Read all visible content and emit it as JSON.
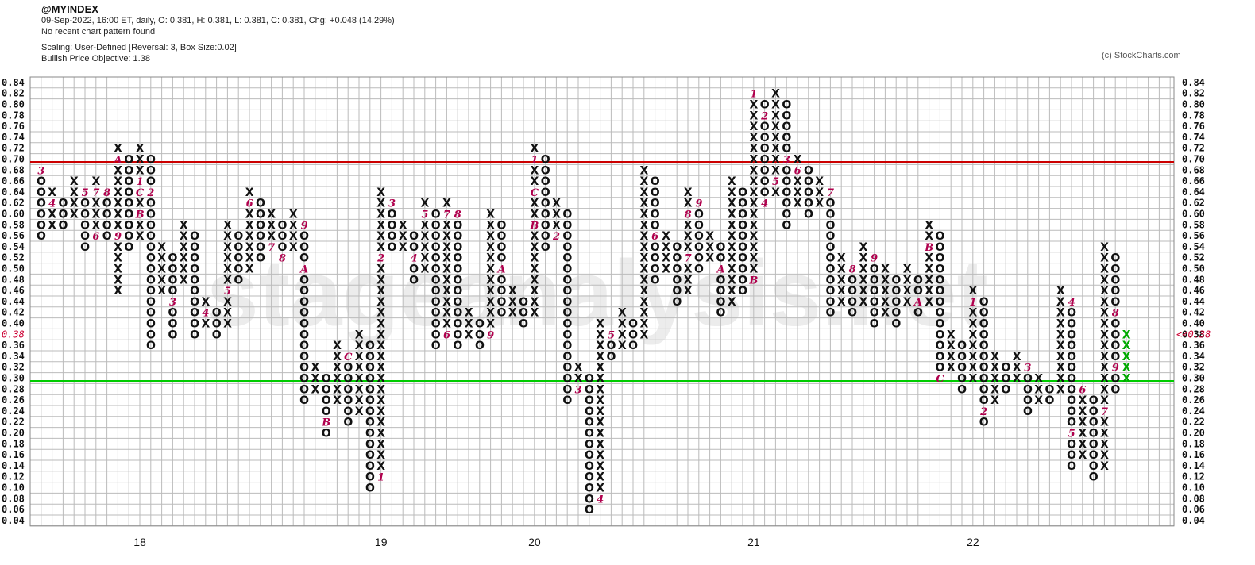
{
  "header": {
    "symbol": "@MYINDEX",
    "ohlc_line": "09-Sep-2022, 16:00 ET, daily, O: 0.381, H: 0.381, L: 0.381, C: 0.381, Chg: +0.048 (14.29%)",
    "pattern_line": "No recent chart pattern found",
    "scaling_line": "Scaling: User-Defined [Reversal: 3, Box Size:0.02]",
    "objective_line": "Bullish Price Objective: 1.38"
  },
  "credit": "(c) StockCharts.com",
  "watermark": "stageanalysis.net",
  "colors": {
    "x_mark": "#111111",
    "o_mark": "#111111",
    "month_label": "#b0004d",
    "resistance": "#cc0000",
    "support": "#00cc00",
    "last_x": "#00aa00",
    "grid": "#bbbbbb",
    "current_price": "#cc0033"
  },
  "chart_data": {
    "type": "point-and-figure",
    "box_size": 0.02,
    "reversal": 3,
    "ylim": [
      0.04,
      0.84
    ],
    "y_ticks": [
      "0.84",
      "0.82",
      "0.80",
      "0.78",
      "0.76",
      "0.74",
      "0.72",
      "0.70",
      "0.68",
      "0.66",
      "0.64",
      "0.62",
      "0.60",
      "0.58",
      "0.56",
      "0.54",
      "0.52",
      "0.50",
      "0.48",
      "0.46",
      "0.44",
      "0.42",
      "0.40",
      "0.38",
      "0.36",
      "0.34",
      "0.32",
      "0.30",
      "0.28",
      "0.26",
      "0.24",
      "0.22",
      "0.20",
      "0.18",
      "0.16",
      "0.14",
      "0.12",
      "0.10",
      "0.08",
      "0.06",
      "0.04"
    ],
    "current_price_label": "<<0.38",
    "current_price": 0.38,
    "year_labels": [
      {
        "label": "18",
        "column": 9
      },
      {
        "label": "19",
        "column": 31
      },
      {
        "label": "20",
        "column": 45
      },
      {
        "label": "21",
        "column": 65
      },
      {
        "label": "22",
        "column": 85
      }
    ],
    "horizontal_lines": [
      {
        "name": "resistance",
        "value": 0.695,
        "color": "#cc0000"
      },
      {
        "name": "support",
        "value": 0.295,
        "color": "#00cc00"
      }
    ],
    "columns": [
      {
        "type": "O",
        "high": 0.68,
        "low": 0.56,
        "months": {
          "0.68": "3"
        }
      },
      {
        "type": "X",
        "high": 0.64,
        "low": 0.58,
        "months": {
          "0.62": "4"
        }
      },
      {
        "type": "O",
        "high": 0.62,
        "low": 0.58
      },
      {
        "type": "X",
        "high": 0.66,
        "low": 0.6
      },
      {
        "type": "O",
        "high": 0.64,
        "low": 0.54,
        "months": {
          "0.64": "5"
        }
      },
      {
        "type": "X",
        "high": 0.66,
        "low": 0.56,
        "months": {
          "0.64": "7",
          "0.56": "6"
        }
      },
      {
        "type": "O",
        "high": 0.64,
        "low": 0.56,
        "months": {
          "0.64": "8"
        }
      },
      {
        "type": "X",
        "high": 0.72,
        "low": 0.46,
        "months": {
          "0.70": "A",
          "0.56": "9"
        }
      },
      {
        "type": "O",
        "high": 0.7,
        "low": 0.54
      },
      {
        "type": "X",
        "high": 0.72,
        "low": 0.56,
        "months": {
          "0.66": "1",
          "0.64": "C",
          "0.60": "B"
        }
      },
      {
        "type": "O",
        "high": 0.7,
        "low": 0.36,
        "months": {
          "0.64": "2"
        }
      },
      {
        "type": "X",
        "high": 0.54,
        "low": 0.46
      },
      {
        "type": "O",
        "high": 0.52,
        "low": 0.38,
        "months": {
          "0.44": "3"
        }
      },
      {
        "type": "X",
        "high": 0.58,
        "low": 0.48
      },
      {
        "type": "O",
        "high": 0.56,
        "low": 0.38
      },
      {
        "type": "X",
        "high": 0.44,
        "low": 0.4,
        "months": {
          "0.42": "4"
        }
      },
      {
        "type": "O",
        "high": 0.42,
        "low": 0.38
      },
      {
        "type": "X",
        "high": 0.58,
        "low": 0.4,
        "months": {
          "0.46": "5"
        }
      },
      {
        "type": "O",
        "high": 0.56,
        "low": 0.48
      },
      {
        "type": "X",
        "high": 0.64,
        "low": 0.5,
        "months": {
          "0.62": "6"
        }
      },
      {
        "type": "O",
        "high": 0.62,
        "low": 0.52
      },
      {
        "type": "X",
        "high": 0.6,
        "low": 0.54,
        "months": {
          "0.54": "7"
        }
      },
      {
        "type": "O",
        "high": 0.58,
        "low": 0.52,
        "months": {
          "0.52": "8"
        }
      },
      {
        "type": "X",
        "high": 0.6,
        "low": 0.54
      },
      {
        "type": "O",
        "high": 0.58,
        "low": 0.26,
        "months": {
          "0.58": "9",
          "0.50": "A"
        }
      },
      {
        "type": "X",
        "high": 0.32,
        "low": 0.28
      },
      {
        "type": "O",
        "high": 0.3,
        "low": 0.2,
        "months": {
          "0.22": "B"
        }
      },
      {
        "type": "X",
        "high": 0.36,
        "low": 0.26
      },
      {
        "type": "O",
        "high": 0.34,
        "low": 0.22,
        "months": {
          "0.34": "C"
        }
      },
      {
        "type": "X",
        "high": 0.38,
        "low": 0.24
      },
      {
        "type": "O",
        "high": 0.36,
        "low": 0.1
      },
      {
        "type": "X",
        "high": 0.64,
        "low": 0.12,
        "months": {
          "0.52": "2",
          "0.12": "1"
        }
      },
      {
        "type": "O",
        "high": 0.62,
        "low": 0.54,
        "months": {
          "0.62": "3"
        }
      },
      {
        "type": "X",
        "high": 0.58,
        "low": 0.54
      },
      {
        "type": "O",
        "high": 0.56,
        "low": 0.48,
        "months": {
          "0.52": "4"
        }
      },
      {
        "type": "X",
        "high": 0.62,
        "low": 0.5,
        "months": {
          "0.60": "5"
        }
      },
      {
        "type": "O",
        "high": 0.6,
        "low": 0.36
      },
      {
        "type": "X",
        "high": 0.62,
        "low": 0.38,
        "months": {
          "0.60": "7",
          "0.38": "6"
        }
      },
      {
        "type": "O",
        "high": 0.6,
        "low": 0.36,
        "months": {
          "0.60": "8"
        }
      },
      {
        "type": "X",
        "high": 0.42,
        "low": 0.38
      },
      {
        "type": "O",
        "high": 0.4,
        "low": 0.36
      },
      {
        "type": "X",
        "high": 0.6,
        "low": 0.38,
        "months": {
          "0.38": "9"
        }
      },
      {
        "type": "O",
        "high": 0.58,
        "low": 0.42,
        "months": {
          "0.50": "A"
        }
      },
      {
        "type": "X",
        "high": 0.46,
        "low": 0.42
      },
      {
        "type": "O",
        "high": 0.44,
        "low": 0.4
      },
      {
        "type": "X",
        "high": 0.72,
        "low": 0.42,
        "months": {
          "0.70": "1",
          "0.64": "C",
          "0.58": "B"
        }
      },
      {
        "type": "O",
        "high": 0.7,
        "low": 0.54
      },
      {
        "type": "X",
        "high": 0.62,
        "low": 0.56,
        "months": {
          "0.56": "2"
        }
      },
      {
        "type": "O",
        "high": 0.6,
        "low": 0.26
      },
      {
        "type": "X",
        "high": 0.32,
        "low": 0.28,
        "months": {
          "0.28": "3"
        }
      },
      {
        "type": "O",
        "high": 0.3,
        "low": 0.06
      },
      {
        "type": "X",
        "high": 0.4,
        "low": 0.08,
        "months": {
          "0.08": "4"
        }
      },
      {
        "type": "O",
        "high": 0.38,
        "low": 0.34,
        "months": {
          "0.38": "5"
        }
      },
      {
        "type": "X",
        "high": 0.42,
        "low": 0.36
      },
      {
        "type": "O",
        "high": 0.4,
        "low": 0.36
      },
      {
        "type": "X",
        "high": 0.68,
        "low": 0.38
      },
      {
        "type": "O",
        "high": 0.66,
        "low": 0.48,
        "months": {
          "0.56": "6"
        }
      },
      {
        "type": "X",
        "high": 0.56,
        "low": 0.5
      },
      {
        "type": "O",
        "high": 0.54,
        "low": 0.44
      },
      {
        "type": "X",
        "high": 0.64,
        "low": 0.46,
        "months": {
          "0.60": "8",
          "0.52": "7"
        }
      },
      {
        "type": "O",
        "high": 0.62,
        "low": 0.5,
        "months": {
          "0.62": "9"
        }
      },
      {
        "type": "X",
        "high": 0.56,
        "low": 0.52
      },
      {
        "type": "O",
        "high": 0.54,
        "low": 0.42,
        "months": {
          "0.50": "A"
        }
      },
      {
        "type": "X",
        "high": 0.66,
        "low": 0.44
      },
      {
        "type": "O",
        "high": 0.64,
        "low": 0.46
      },
      {
        "type": "X",
        "high": 0.82,
        "low": 0.48,
        "months": {
          "0.82": "1",
          "0.48": "B"
        }
      },
      {
        "type": "O",
        "high": 0.8,
        "low": 0.62,
        "months": {
          "0.78": "2",
          "0.62": "4"
        }
      },
      {
        "type": "X",
        "high": 0.82,
        "low": 0.64,
        "months": {
          "0.66": "5"
        }
      },
      {
        "type": "O",
        "high": 0.8,
        "low": 0.58,
        "months": {
          "0.70": "3"
        }
      },
      {
        "type": "X",
        "high": 0.7,
        "low": 0.62,
        "months": {
          "0.68": "6"
        }
      },
      {
        "type": "O",
        "high": 0.68,
        "low": 0.6
      },
      {
        "type": "X",
        "high": 0.66,
        "low": 0.62
      },
      {
        "type": "O",
        "high": 0.64,
        "low": 0.42,
        "months": {
          "0.64": "7"
        }
      },
      {
        "type": "X",
        "high": 0.52,
        "low": 0.44
      },
      {
        "type": "O",
        "high": 0.5,
        "low": 0.42,
        "months": {
          "0.50": "8"
        }
      },
      {
        "type": "X",
        "high": 0.54,
        "low": 0.44
      },
      {
        "type": "O",
        "high": 0.52,
        "low": 0.4,
        "months": {
          "0.52": "9"
        }
      },
      {
        "type": "X",
        "high": 0.5,
        "low": 0.42
      },
      {
        "type": "O",
        "high": 0.48,
        "low": 0.4
      },
      {
        "type": "X",
        "high": 0.5,
        "low": 0.44
      },
      {
        "type": "O",
        "high": 0.48,
        "low": 0.42,
        "months": {
          "0.44": "A"
        }
      },
      {
        "type": "X",
        "high": 0.58,
        "low": 0.44,
        "months": {
          "0.54": "B"
        }
      },
      {
        "type": "O",
        "high": 0.56,
        "low": 0.3,
        "months": {
          "0.30": "C"
        }
      },
      {
        "type": "X",
        "high": 0.38,
        "low": 0.32
      },
      {
        "type": "O",
        "high": 0.36,
        "low": 0.28
      },
      {
        "type": "X",
        "high": 0.46,
        "low": 0.3,
        "months": {
          "0.44": "1"
        }
      },
      {
        "type": "O",
        "high": 0.44,
        "low": 0.22,
        "months": {
          "0.24": "2"
        }
      },
      {
        "type": "X",
        "high": 0.34,
        "low": 0.26
      },
      {
        "type": "O",
        "high": 0.32,
        "low": 0.28
      },
      {
        "type": "X",
        "high": 0.34,
        "low": 0.3
      },
      {
        "type": "O",
        "high": 0.32,
        "low": 0.24,
        "months": {
          "0.32": "3"
        }
      },
      {
        "type": "X",
        "high": 0.3,
        "low": 0.26
      },
      {
        "type": "O",
        "high": 0.28,
        "low": 0.26
      },
      {
        "type": "X",
        "high": 0.46,
        "low": 0.28
      },
      {
        "type": "O",
        "high": 0.44,
        "low": 0.14,
        "months": {
          "0.44": "4",
          "0.20": "5"
        }
      },
      {
        "type": "X",
        "high": 0.28,
        "low": 0.16,
        "months": {
          "0.28": "6"
        }
      },
      {
        "type": "O",
        "high": 0.26,
        "low": 0.12
      },
      {
        "type": "X",
        "high": 0.54,
        "low": 0.14,
        "months": {
          "0.24": "7"
        }
      },
      {
        "type": "O",
        "high": 0.52,
        "low": 0.28,
        "months": {
          "0.42": "8",
          "0.32": "9"
        }
      },
      {
        "type": "X",
        "high": 0.38,
        "low": 0.3,
        "color": "#00aa00"
      }
    ]
  }
}
